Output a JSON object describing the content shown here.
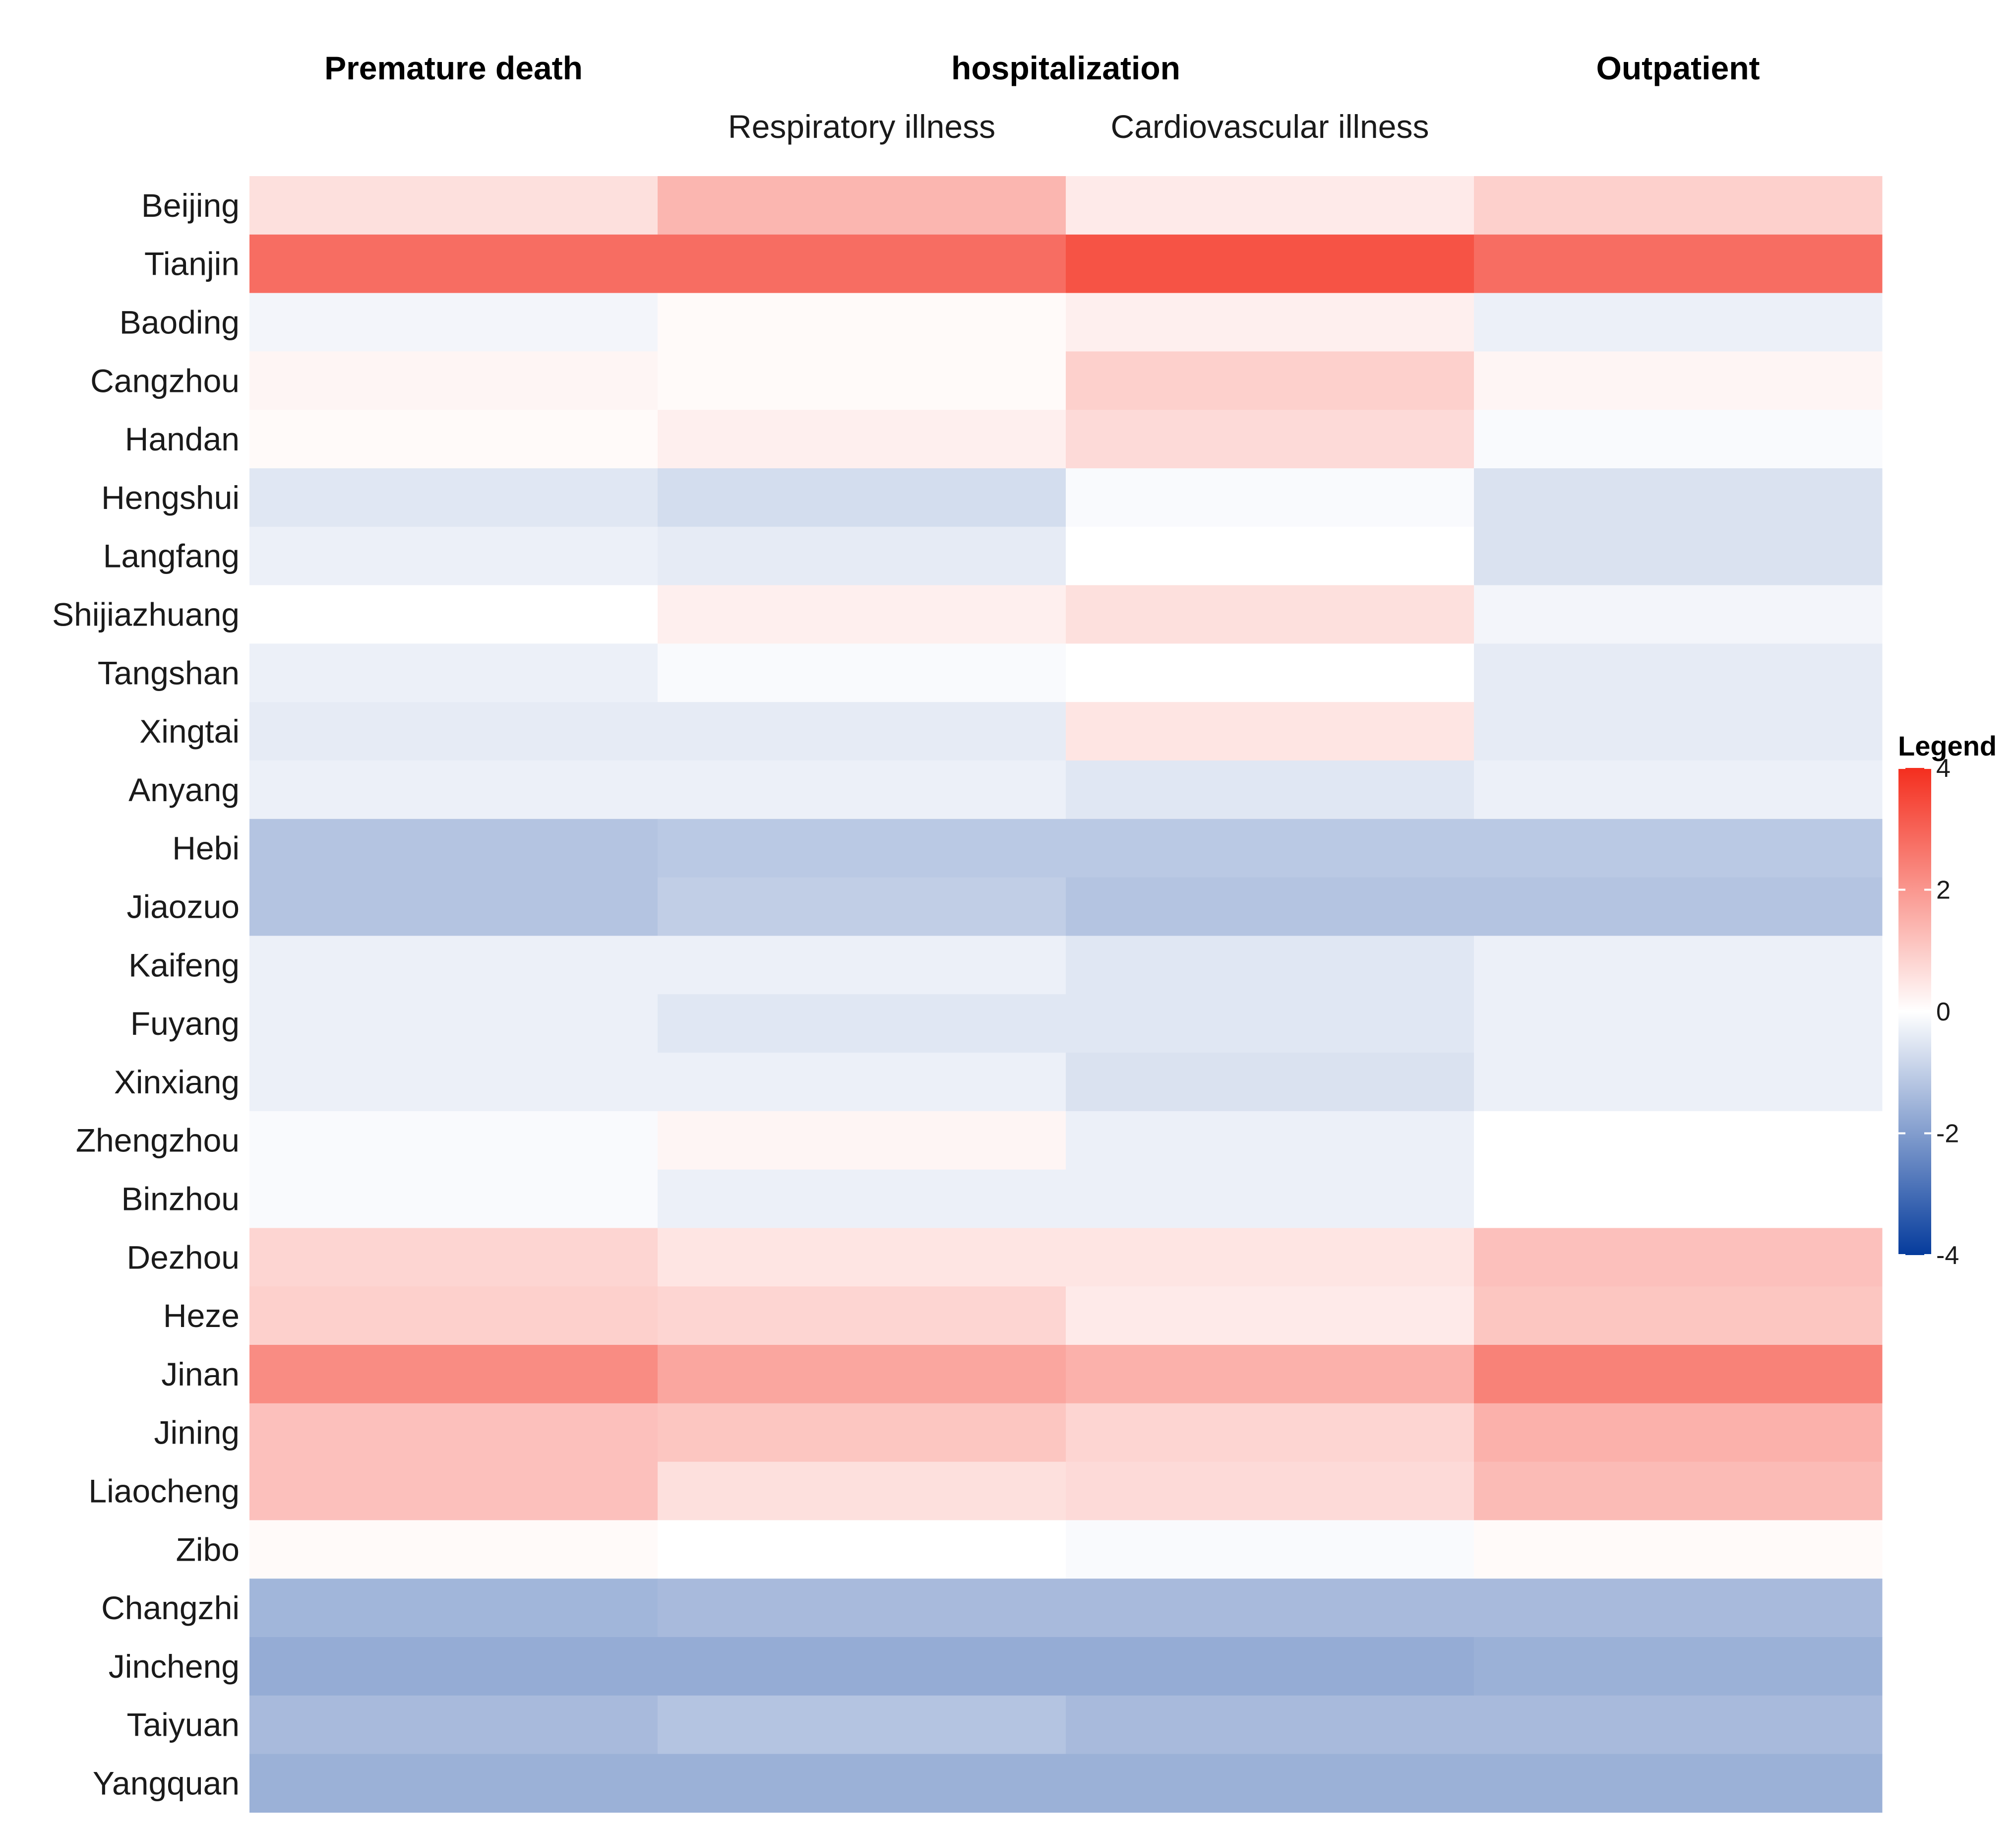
{
  "chart_data": {
    "type": "heatmap",
    "title": "",
    "column_groups": [
      {
        "label": "Premature death",
        "columns": [
          "Premature death"
        ]
      },
      {
        "label": "hospitalization",
        "columns": [
          "Respiratory illness",
          "Cardiovascular illness"
        ]
      },
      {
        "label": "Outpatient",
        "columns": [
          "Outpatient"
        ]
      }
    ],
    "subheaders": [
      "",
      "Respiratory illness",
      "Cardiovascular illness",
      ""
    ],
    "columns": [
      "Premature death",
      "Respiratory illness",
      "Cardiovascular illness",
      "Outpatient"
    ],
    "rows": [
      "Beijing",
      "Tianjin",
      "Baoding",
      "Cangzhou",
      "Handan",
      "Hengshui",
      "Langfang",
      "Shijiazhuang",
      "Tangshan",
      "Xingtai",
      "Anyang",
      "Hebi",
      "Jiaozuo",
      "Kaifeng",
      "Fuyang",
      "Xinxiang",
      "Zhengzhou",
      "Binzhou",
      "Dezhou",
      "Heze",
      "Jinan",
      "Jining",
      "Liaocheng",
      "Zibo",
      "Changzhi",
      "Jincheng",
      "Taiyuan",
      "Yangquan"
    ],
    "values": [
      [
        0.6,
        1.4,
        0.4,
        0.9
      ],
      [
        2.8,
        2.8,
        3.3,
        2.8
      ],
      [
        -0.2,
        0.1,
        0.3,
        -0.3
      ],
      [
        0.2,
        0.1,
        0.9,
        0.2
      ],
      [
        0.1,
        0.3,
        0.7,
        -0.1
      ],
      [
        -0.5,
        -0.7,
        -0.1,
        -0.6
      ],
      [
        -0.3,
        -0.4,
        0.0,
        -0.6
      ],
      [
        0.0,
        0.3,
        0.6,
        -0.2
      ],
      [
        -0.3,
        -0.1,
        0.0,
        -0.4
      ],
      [
        -0.4,
        -0.4,
        0.5,
        -0.4
      ],
      [
        -0.3,
        -0.3,
        -0.5,
        -0.3
      ],
      [
        -1.2,
        -1.1,
        -1.1,
        -1.1
      ],
      [
        -1.2,
        -1.0,
        -1.2,
        -1.2
      ],
      [
        -0.3,
        -0.3,
        -0.5,
        -0.3
      ],
      [
        -0.3,
        -0.5,
        -0.5,
        -0.3
      ],
      [
        -0.3,
        -0.3,
        -0.6,
        -0.3
      ],
      [
        -0.1,
        0.2,
        -0.3,
        0.0
      ],
      [
        -0.1,
        -0.3,
        -0.3,
        0.0
      ],
      [
        0.8,
        0.5,
        0.5,
        1.2
      ],
      [
        0.9,
        0.8,
        0.4,
        1.1
      ],
      [
        2.2,
        1.7,
        1.5,
        2.4
      ],
      [
        1.2,
        1.1,
        0.8,
        1.5
      ],
      [
        1.2,
        0.6,
        0.7,
        1.3
      ],
      [
        0.1,
        0.0,
        -0.1,
        0.1
      ],
      [
        -1.5,
        -1.4,
        -1.4,
        -1.4
      ],
      [
        -1.7,
        -1.7,
        -1.7,
        -1.6
      ],
      [
        -1.4,
        -1.2,
        -1.4,
        -1.4
      ],
      [
        -1.6,
        -1.6,
        -1.6,
        -1.6
      ]
    ],
    "color_scale": {
      "min": -4,
      "max": 4,
      "low_color": "#053B9C",
      "mid_color": "#FFFFFF",
      "high_color": "#F42E1E"
    },
    "legend": {
      "title": "Legend",
      "ticks": [
        "4",
        "2",
        "0",
        "-2",
        "-4"
      ],
      "tick_values": [
        4,
        2,
        0,
        -2,
        -4
      ],
      "position": "right"
    }
  }
}
